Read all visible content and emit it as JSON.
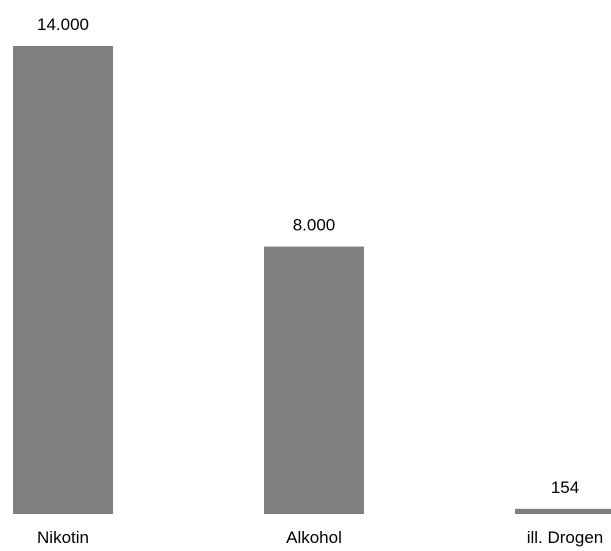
{
  "chart_data": {
    "type": "bar",
    "categories": [
      "Nikotin",
      "Alkohol",
      "ill. Drogen"
    ],
    "values": [
      14000,
      8000,
      154
    ],
    "value_labels": [
      "14.000",
      "8.000",
      "154"
    ],
    "title": "",
    "xlabel": "",
    "ylabel": "",
    "ylim": [
      0,
      14000
    ],
    "grid": false,
    "legend": "none",
    "bar_color": "#808080",
    "text_color": "#000000",
    "background": "#ffffff"
  }
}
